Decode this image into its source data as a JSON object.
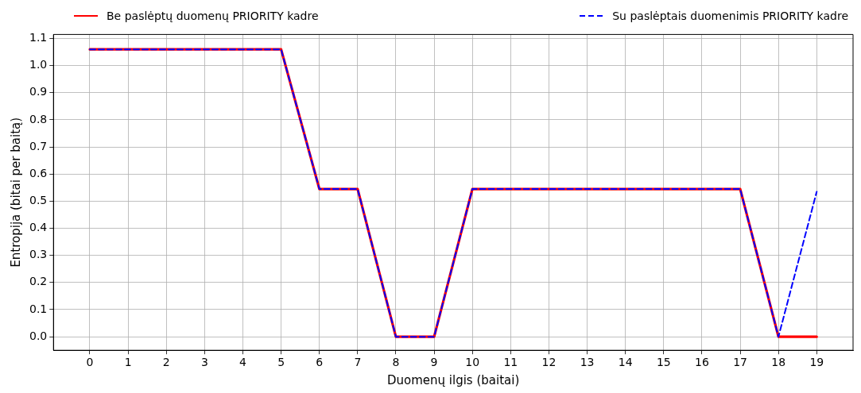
{
  "chart_data": {
    "type": "line",
    "xlabel": "Duomenų ilgis (baitai)",
    "ylabel": "Entropija (bitai per baitą)",
    "x": [
      0,
      1,
      2,
      3,
      4,
      5,
      6,
      7,
      8,
      9,
      10,
      11,
      12,
      13,
      14,
      15,
      16,
      17,
      18,
      19
    ],
    "series": [
      {
        "name": "Be paslėptų duomenų PRIORITY kadre",
        "color": "#ff0000",
        "line_style": "solid",
        "values": [
          1.06,
          1.06,
          1.06,
          1.06,
          1.06,
          1.06,
          0.545,
          0.545,
          0,
          0,
          0.545,
          0.545,
          0.545,
          0.545,
          0.545,
          0.545,
          0.545,
          0.545,
          0,
          0
        ]
      },
      {
        "name": "Su paslėptais duomenimis PRIORITY kadre",
        "color": "#0000ff",
        "line_style": "dashed",
        "values": [
          1.06,
          1.06,
          1.06,
          1.06,
          1.06,
          1.06,
          0.545,
          0.545,
          0,
          0,
          0.545,
          0.545,
          0.545,
          0.545,
          0.545,
          0.545,
          0.545,
          0.545,
          0,
          0.535
        ]
      }
    ],
    "xlim": [
      -0.95,
      19.95
    ],
    "xticks": [
      0,
      1,
      2,
      3,
      4,
      5,
      6,
      7,
      8,
      9,
      10,
      11,
      12,
      13,
      14,
      15,
      16,
      17,
      18,
      19
    ],
    "ylim": [
      -0.05,
      1.115
    ],
    "yticks": [
      {
        "value": 0,
        "label": "0.0"
      },
      {
        "value": 0.1,
        "label": "0.1"
      },
      {
        "value": 0.2,
        "label": "0.2"
      },
      {
        "value": 0.3,
        "label": "0.3"
      },
      {
        "value": 0.4,
        "label": "0.4"
      },
      {
        "value": 0.5,
        "label": "0.5"
      },
      {
        "value": 0.6,
        "label": "0.6"
      },
      {
        "value": 0.7,
        "label": "0.7"
      },
      {
        "value": 0.8,
        "label": "0.8"
      },
      {
        "value": 0.9,
        "label": "0.9"
      },
      {
        "value": 1,
        "label": "1.0"
      },
      {
        "value": 1.1,
        "label": "1.1"
      }
    ],
    "grid": true,
    "legend": "top",
    "marker": "none"
  }
}
